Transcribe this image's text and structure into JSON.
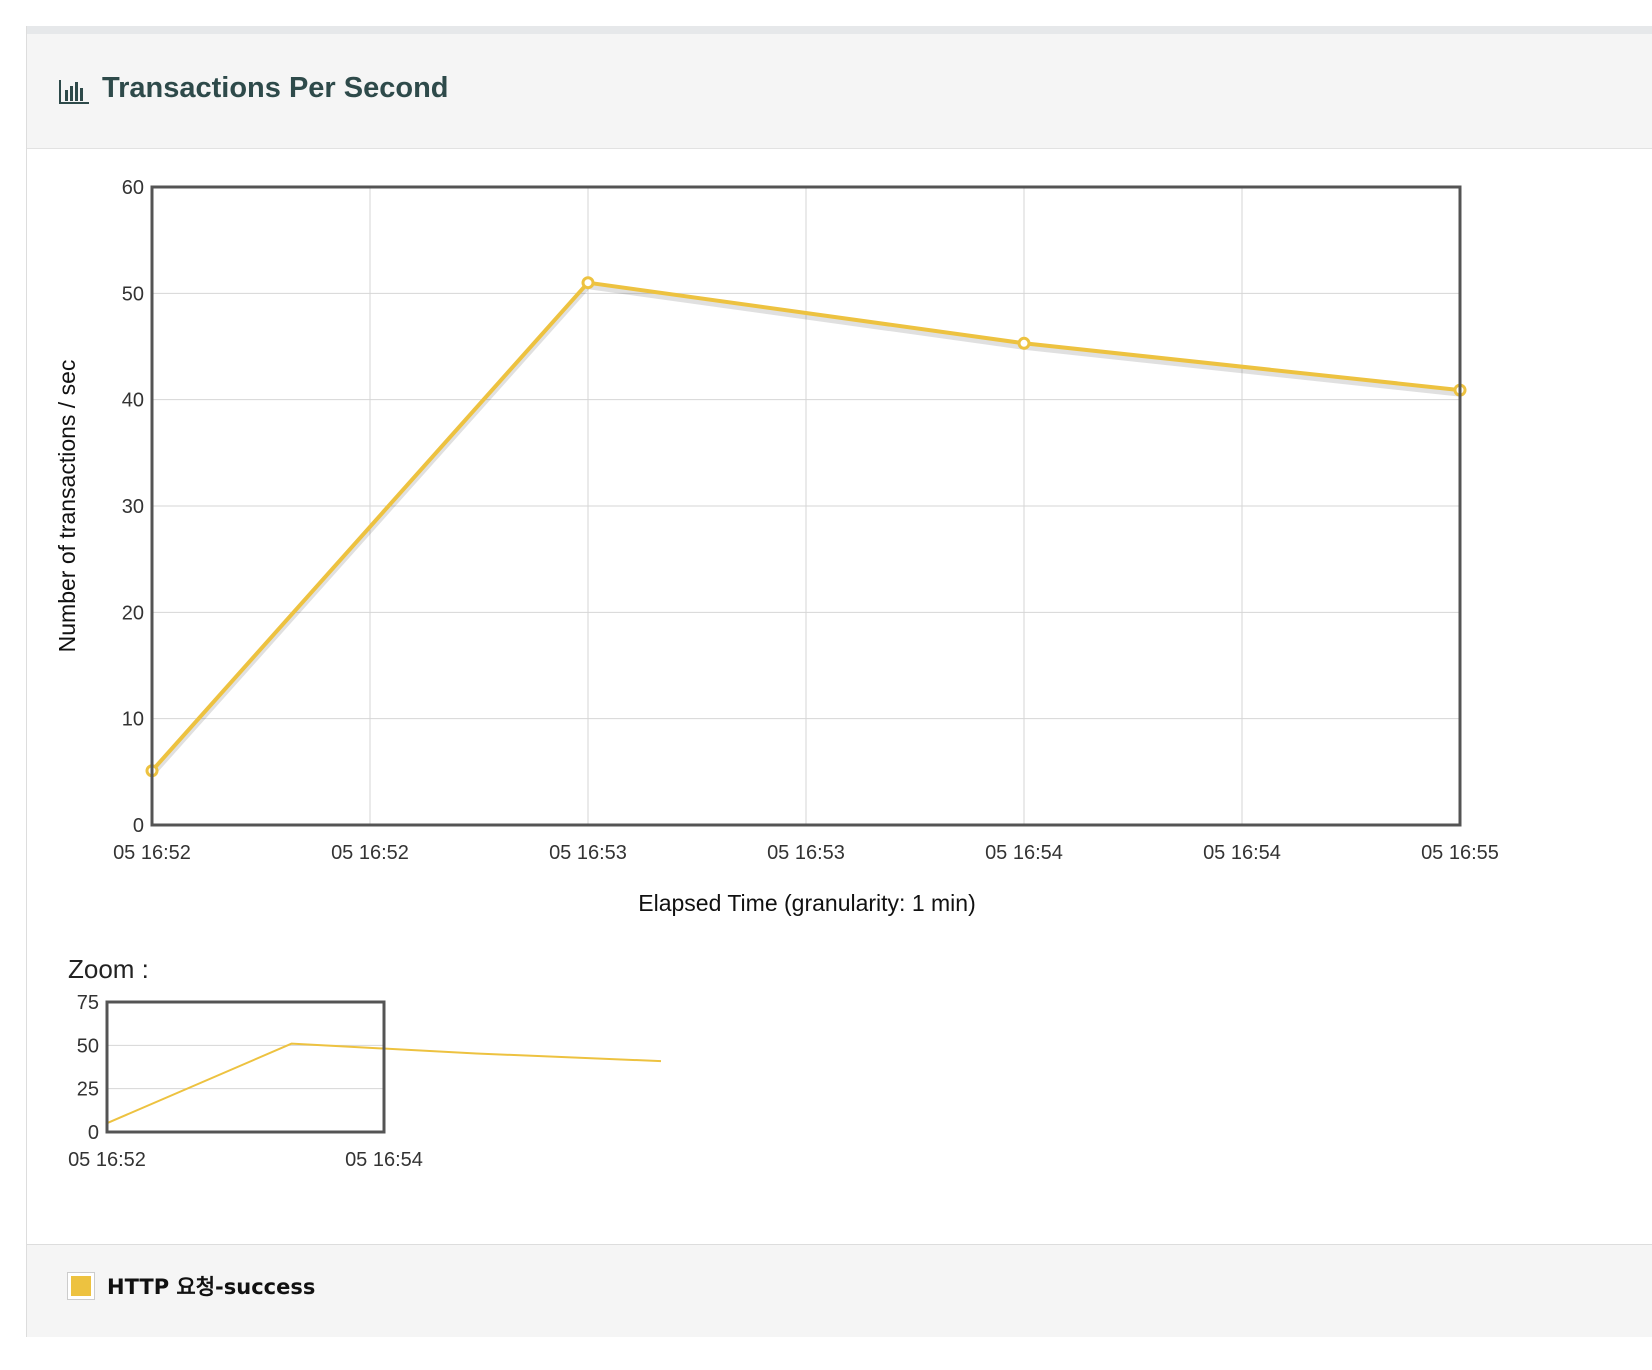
{
  "panel": {
    "title": "Transactions Per Second",
    "icon": "bar-chart-icon",
    "zoom_label": "Zoom :"
  },
  "colors": {
    "series": "#edc240",
    "title": "#2e4a4a",
    "axis_frame": "#545454",
    "grid": "#d6d6d6"
  },
  "chart_data": [
    {
      "type": "line",
      "xlabel": "Elapsed Time (granularity: 1 min)",
      "ylabel": "Number of transactions / sec",
      "ylim": [
        0,
        60
      ],
      "yticks": [
        0,
        10,
        20,
        30,
        40,
        50,
        60
      ],
      "xticks": [
        "05 16:52",
        "05 16:52",
        "05 16:53",
        "05 16:53",
        "05 16:54",
        "05 16:54",
        "05 16:55"
      ],
      "grid": true,
      "series": [
        {
          "name": "HTTP 요청-success",
          "x": [
            "05 16:52",
            "05 16:53",
            "05 16:54",
            "05 16:55"
          ],
          "values": [
            5.1,
            51.0,
            45.3,
            40.9
          ]
        }
      ]
    },
    {
      "type": "line",
      "ylim": [
        0,
        75
      ],
      "yticks": [
        0,
        25,
        50,
        75
      ],
      "xticks": [
        "05 16:52",
        "05 16:54"
      ],
      "grid": true,
      "series": [
        {
          "name": "HTTP 요청-success",
          "x": [
            "05 16:52",
            "05 16:53",
            "05 16:54",
            "05 16:55"
          ],
          "values": [
            5.1,
            51.0,
            45.3,
            40.9
          ]
        }
      ]
    }
  ],
  "legend": {
    "items": [
      {
        "label": "HTTP 요청-success",
        "color": "#edc240"
      }
    ]
  }
}
